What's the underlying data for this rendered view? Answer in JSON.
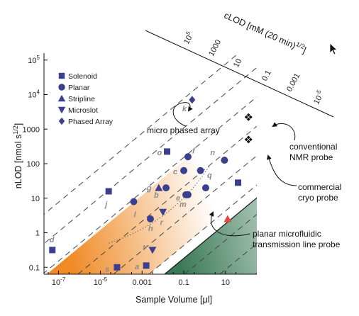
{
  "chart_data": {
    "type": "scatter",
    "xlabel": "Sample Volume [μl]",
    "ylabel": "nLOD [nmol s",
    "ylabel_sup": "1/2",
    "ylabel_end": "]",
    "top_axis_title": "cLOD [mM (20 min)",
    "top_axis_sup": "1/2",
    "top_axis_end": "]",
    "x_scale": "log10",
    "y_scale": "log10",
    "xlim_log10": [
      -7.7,
      2.5
    ],
    "ylim_log10": [
      -1.2,
      5.2
    ],
    "x_ticks": [
      {
        "v": -7,
        "label": "10",
        "sup": "-7"
      },
      {
        "v": -5,
        "label": "10",
        "sup": "-5"
      },
      {
        "v": -3,
        "label": "0.001",
        "sup": ""
      },
      {
        "v": -1,
        "label": "0.1",
        "sup": ""
      },
      {
        "v": 1,
        "label": "10",
        "sup": ""
      }
    ],
    "y_ticks": [
      {
        "v": -1,
        "label": "0.1",
        "sup": ""
      },
      {
        "v": 0,
        "label": "1",
        "sup": ""
      },
      {
        "v": 1,
        "label": "10",
        "sup": ""
      },
      {
        "v": 2,
        "label": "100",
        "sup": ""
      },
      {
        "v": 3,
        "label": "1000",
        "sup": ""
      },
      {
        "v": 4,
        "label": "10",
        "sup": "4"
      },
      {
        "v": 5,
        "label": "10",
        "sup": "5"
      }
    ],
    "clod_lines": [
      {
        "label": "10",
        "sup": "5"
      },
      {
        "label": "1000",
        "sup": ""
      },
      {
        "label": "10",
        "sup": ""
      },
      {
        "label": "0.1",
        "sup": ""
      },
      {
        "label": "0.001",
        "sup": ""
      },
      {
        "label": "10",
        "sup": "-5"
      }
    ],
    "legend": [
      {
        "name": "Solenoid",
        "shape": "square"
      },
      {
        "name": "Planar",
        "shape": "circle"
      },
      {
        "name": "Stripline",
        "shape": "triangle"
      },
      {
        "name": "Microslot",
        "shape": "triangle-down"
      },
      {
        "name": "Phased Array",
        "shape": "diamond"
      }
    ],
    "points": [
      {
        "label": "d",
        "shape": "square",
        "x": -7.3,
        "y": -0.5
      },
      {
        "label": "j",
        "shape": "square",
        "x": -4.6,
        "y": 1.2
      },
      {
        "label": "s",
        "shape": "square",
        "x": -4.2,
        "y": -1.0
      },
      {
        "label": "a",
        "shape": "square",
        "x": -2.8,
        "y": -0.95
      },
      {
        "label": "o",
        "shape": "square",
        "x": -1.8,
        "y": 2.35
      },
      {
        "label": "",
        "shape": "square",
        "x": 1.6,
        "y": 1.45
      },
      {
        "label": "l",
        "shape": "circle",
        "x": -3.4,
        "y": 0.9
      },
      {
        "label": "h",
        "shape": "circle",
        "x": -2.6,
        "y": 0.4
      },
      {
        "label": "b",
        "shape": "circle",
        "x": -1.85,
        "y": 1.3
      },
      {
        "label": "c",
        "shape": "circle",
        "x": -1.0,
        "y": 1.8
      },
      {
        "label": "f",
        "shape": "circle",
        "x": -0.8,
        "y": 2.2
      },
      {
        "label": "e",
        "shape": "circle",
        "x": -0.8,
        "y": 1.1
      },
      {
        "label": "m",
        "shape": "circle",
        "x": -0.9,
        "y": 1.1
      },
      {
        "label": "q",
        "shape": "circle",
        "x": 0.05,
        "y": 1.3
      },
      {
        "label": "n",
        "shape": "circle",
        "x": 0.95,
        "y": 2.1
      },
      {
        "label": "",
        "shape": "circle",
        "x": -0.2,
        "y": 1.8
      },
      {
        "label": "g",
        "shape": "triangle",
        "x": -2.2,
        "y": 1.3
      },
      {
        "label": "",
        "shape": "triangle",
        "x": 1.1,
        "y": 0.4
      },
      {
        "label": "t",
        "shape": "triangle-down",
        "x": -2.5,
        "y": -0.5
      },
      {
        "label": "r",
        "shape": "triangle-down",
        "x": -2.0,
        "y": 0.6
      },
      {
        "label": "k",
        "shape": "diamond",
        "x": -0.6,
        "y": 3.85
      },
      {
        "label": "",
        "shape": "diamond-cluster",
        "x": 2.1,
        "y": 3.35
      },
      {
        "label": "",
        "shape": "diamond-cluster",
        "x": 2.1,
        "y": 2.7
      }
    ],
    "annotations": [
      {
        "id": "phased",
        "text": "micro phased array"
      },
      {
        "id": "conv1",
        "text": "conventional"
      },
      {
        "id": "conv2",
        "text": "NMR probe"
      },
      {
        "id": "cryo1",
        "text": "commercial"
      },
      {
        "id": "cryo2",
        "text": "cryo probe"
      },
      {
        "id": "planar1",
        "text": "planar  microfluidic"
      },
      {
        "id": "planar2",
        "text": "transmission line probe"
      }
    ],
    "colors": {
      "orange": "#ef8a25",
      "green": "#3b7a57",
      "marker": "#3c3f8f",
      "highlight": "#e8463f"
    }
  }
}
